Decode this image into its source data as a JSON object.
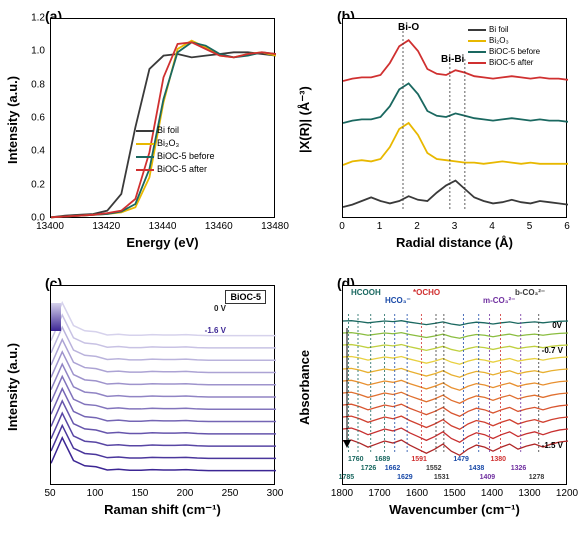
{
  "panels": {
    "a": {
      "label": "(a)",
      "xlab": "Energy (eV)",
      "ylab": "Intensity (a.u.)",
      "xlim": [
        13400,
        13480
      ],
      "xticks": [
        13400,
        13420,
        13440,
        13460,
        13480
      ],
      "ylim": [
        0,
        1.2
      ],
      "yticks": [
        "0.0",
        "0.2",
        "0.4",
        "0.6",
        "0.8",
        "1.0",
        "1.2"
      ],
      "series": [
        {
          "name": "Bi foil",
          "color": "#3a3a3a",
          "y": [
            0.01,
            0.02,
            0.025,
            0.03,
            0.05,
            0.15,
            0.55,
            0.9,
            0.98,
            0.99,
            0.97,
            0.98,
            0.99,
            1.0,
            1.0,
            0.99,
            0.98
          ]
        },
        {
          "name": "Bi₂O₃",
          "color": "#e8b800",
          "y": [
            0.01,
            0.015,
            0.02,
            0.025,
            0.03,
            0.04,
            0.07,
            0.25,
            0.7,
            1.02,
            1.07,
            1.03,
            0.98,
            0.97,
            0.99,
            1.0,
            0.98
          ]
        },
        {
          "name": "BiOC-5 before",
          "color": "#1a6860",
          "y": [
            0.01,
            0.015,
            0.02,
            0.025,
            0.03,
            0.045,
            0.09,
            0.3,
            0.72,
            1.0,
            1.06,
            1.04,
            0.99,
            0.97,
            0.98,
            1.0,
            0.99
          ]
        },
        {
          "name": "BiOC-5 after",
          "color": "#d03030",
          "y": [
            0.01,
            0.015,
            0.02,
            0.025,
            0.035,
            0.05,
            0.12,
            0.4,
            0.85,
            1.05,
            1.06,
            1.02,
            0.98,
            0.97,
            0.99,
            1.0,
            0.99
          ]
        }
      ]
    },
    "b": {
      "label": "(b)",
      "xlab": "Radial distance (Å)",
      "ylab": "|X(R)| (Å⁻³)",
      "xlim": [
        0,
        6
      ],
      "xticks": [
        0,
        1,
        2,
        3,
        4,
        5,
        6
      ],
      "legend": [
        "Bi foil",
        "Bi₂O₃",
        "BiOC-5 before",
        "BiOC-5 after"
      ],
      "colors": [
        "#3a3a3a",
        "#e8b800",
        "#1a6860",
        "#d03030"
      ],
      "peaks": {
        "BiO": "Bi-O",
        "BiBi": "Bi-Bi"
      },
      "series": [
        {
          "offset": 0,
          "y": [
            0,
            0.02,
            0.05,
            0.08,
            0.05,
            0.03,
            0.05,
            0.09,
            0.06,
            0.05,
            0.12,
            0.18,
            0.22,
            0.15,
            0.08,
            0.05,
            0.03,
            0.04,
            0.06,
            0.04,
            0.03,
            0.05,
            0.04,
            0.03,
            0.02
          ]
        },
        {
          "offset": 0.35,
          "y": [
            0,
            0.03,
            0.04,
            0.03,
            0.05,
            0.15,
            0.3,
            0.35,
            0.25,
            0.1,
            0.05,
            0.04,
            0.03,
            0.02,
            0.02,
            0.01,
            0.02,
            0.03,
            0.02,
            0.01,
            0.02,
            0.01,
            0.01,
            0.01,
            0.01
          ]
        },
        {
          "offset": 0.7,
          "y": [
            0,
            0.02,
            0.03,
            0.03,
            0.05,
            0.14,
            0.28,
            0.33,
            0.24,
            0.1,
            0.06,
            0.05,
            0.08,
            0.06,
            0.04,
            0.03,
            0.02,
            0.03,
            0.04,
            0.03,
            0.02,
            0.03,
            0.02,
            0.02,
            0.01
          ]
        },
        {
          "offset": 1.05,
          "y": [
            0,
            0.02,
            0.03,
            0.03,
            0.05,
            0.15,
            0.29,
            0.34,
            0.25,
            0.1,
            0.06,
            0.05,
            0.09,
            0.07,
            0.04,
            0.03,
            0.02,
            0.03,
            0.04,
            0.03,
            0.02,
            0.03,
            0.02,
            0.02,
            0.01
          ]
        }
      ]
    },
    "c": {
      "label": "(c)",
      "xlab": "Raman shift (cm⁻¹)",
      "ylab": "Intensity (a.u.)",
      "xlim": [
        50,
        300
      ],
      "xticks": [
        50,
        100,
        150,
        200,
        250,
        300
      ],
      "tag": "BiOC-5",
      "vtop": "0 V",
      "vbot": "-1.6 V",
      "colors": [
        "#d6d2ec",
        "#c8c2e4",
        "#bab3dc",
        "#aca3d4",
        "#9e93cc",
        "#9084c4",
        "#8274bc",
        "#7465b4",
        "#6655ac",
        "#5846a4",
        "#4a369c",
        "#3c2694"
      ],
      "peaks": [
        0.22,
        0.95,
        0.3,
        0.15,
        0.12,
        0.03,
        0.05,
        0.02,
        0.02,
        0.04,
        0.03,
        0.03,
        0.04,
        0.02,
        0.01,
        0.01,
        0.01,
        0.01,
        0.01,
        0.01,
        0.01
      ]
    },
    "d": {
      "label": "(d)",
      "xlab": "Wavencumber (cm⁻¹)",
      "ylab": "Absorbance",
      "xlim": [
        1800,
        1200
      ],
      "xticks": [
        1800,
        1700,
        1600,
        1500,
        1400,
        1300,
        1200
      ],
      "vtop": "0V",
      "vmid": "-0.7 V",
      "vbot": "-1.5 V",
      "species": [
        {
          "name": "HCOOH",
          "color": "#1a6860"
        },
        {
          "name": "HCO₃⁻",
          "color": "#1a4aa8"
        },
        {
          "name": "*OCHO",
          "color": "#d03030"
        },
        {
          "name": "m-CO₃²⁻",
          "color": "#7030a0"
        },
        {
          "name": "b-CO₃²⁻",
          "color": "#3a3a3a"
        }
      ],
      "nums": [
        {
          "t": "1760",
          "c": "#1a6860",
          "x": 1760
        },
        {
          "t": "1726",
          "c": "#1a6860",
          "x": 1726
        },
        {
          "t": "1785",
          "c": "#1a6860",
          "x": 1785
        },
        {
          "t": "1689",
          "c": "#1a6860",
          "x": 1689
        },
        {
          "t": "1662",
          "c": "#1a4aa8",
          "x": 1662
        },
        {
          "t": "1629",
          "c": "#1a4aa8",
          "x": 1629
        },
        {
          "t": "1591",
          "c": "#d03030",
          "x": 1591
        },
        {
          "t": "1552",
          "c": "#3a3a3a",
          "x": 1552
        },
        {
          "t": "1531",
          "c": "#3a3a3a",
          "x": 1531
        },
        {
          "t": "1479",
          "c": "#1a4aa8",
          "x": 1479
        },
        {
          "t": "1438",
          "c": "#1a4aa8",
          "x": 1438
        },
        {
          "t": "1409",
          "c": "#7030a0",
          "x": 1409
        },
        {
          "t": "1380",
          "c": "#d03030",
          "x": 1380
        },
        {
          "t": "1326",
          "c": "#7030a0",
          "x": 1326
        },
        {
          "t": "1278",
          "c": "#3a3a3a",
          "x": 1278
        }
      ],
      "colors": [
        "#1a6860",
        "#8abd3f",
        "#c0d040",
        "#e8d040",
        "#e8b030",
        "#e89030",
        "#e07030",
        "#d85530",
        "#d04030",
        "#c83030",
        "#b02828"
      ]
    }
  },
  "fs": {
    "axis": 13,
    "tick": 10
  }
}
